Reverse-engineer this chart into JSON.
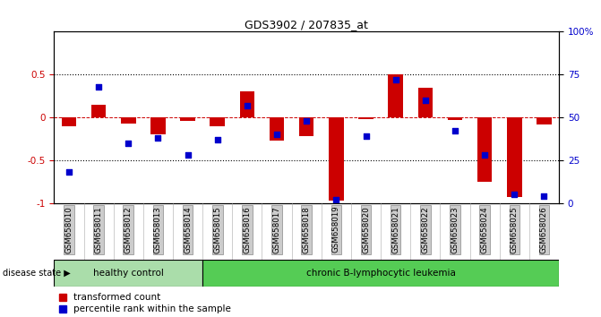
{
  "title": "GDS3902 / 207835_at",
  "samples": [
    "GSM658010",
    "GSM658011",
    "GSM658012",
    "GSM658013",
    "GSM658014",
    "GSM658015",
    "GSM658016",
    "GSM658017",
    "GSM658018",
    "GSM658019",
    "GSM658020",
    "GSM658021",
    "GSM658022",
    "GSM658023",
    "GSM658024",
    "GSM658025",
    "GSM658026"
  ],
  "red_bars": [
    -0.1,
    0.15,
    -0.07,
    -0.2,
    -0.04,
    -0.1,
    0.3,
    -0.27,
    -0.22,
    -0.97,
    -0.02,
    0.5,
    0.35,
    -0.03,
    -0.75,
    -0.93,
    -0.08
  ],
  "blue_dots_pct": [
    18,
    68,
    35,
    38,
    28,
    37,
    57,
    40,
    48,
    2,
    39,
    72,
    60,
    42,
    28,
    5,
    4
  ],
  "group1_label": "healthy control",
  "group2_label": "chronic B-lymphocytic leukemia",
  "group1_count": 5,
  "group2_count": 12,
  "disease_state_label": "disease state",
  "legend_red": "transformed count",
  "legend_blue": "percentile rank within the sample",
  "ylim": [
    -1,
    1
  ],
  "right_ylim": [
    0,
    100
  ],
  "bar_color": "#cc0000",
  "dot_color": "#0000cc",
  "group1_color": "#aaddaa",
  "group2_color": "#55cc55",
  "tick_bg_color": "#cccccc",
  "plot_bg_color": "#ffffff"
}
